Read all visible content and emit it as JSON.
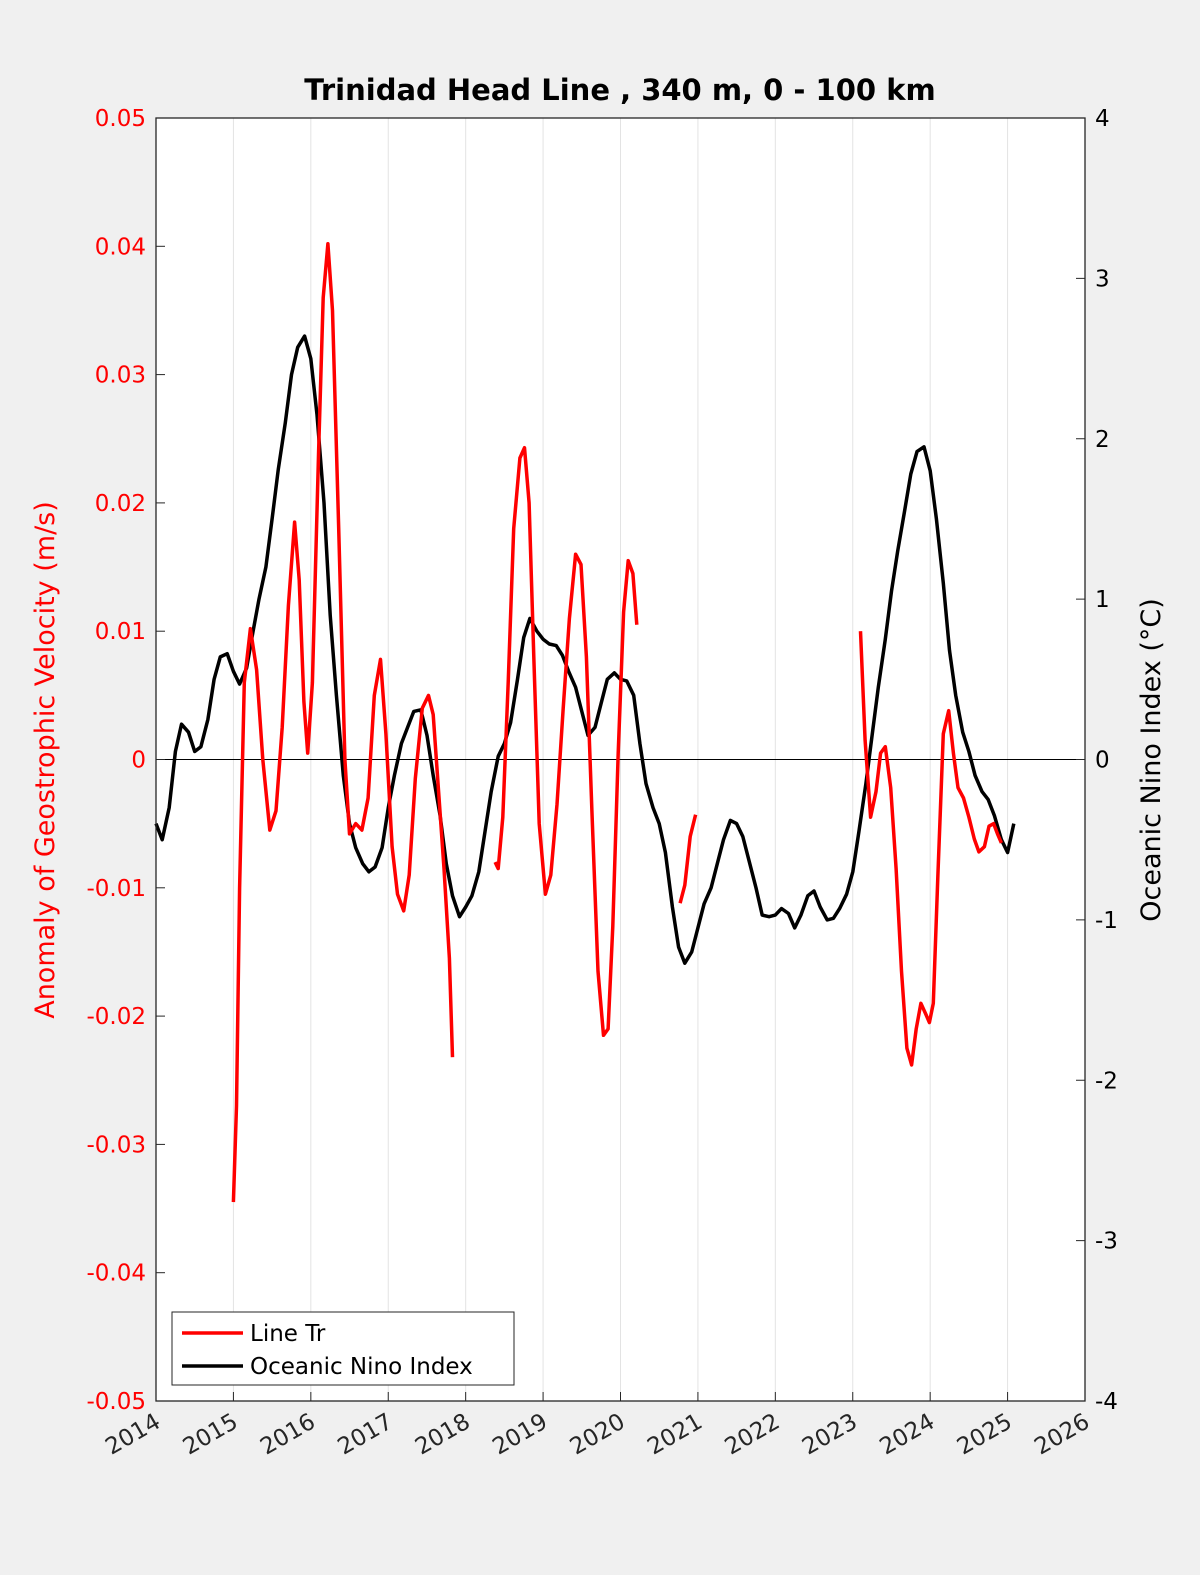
{
  "chart_data": {
    "type": "line",
    "title": "Trinidad Head Line , 340 m, 0 - 100 km",
    "xlabel": "",
    "ylabel_left": "Anomaly of Geostrophic Velocity (m/s)",
    "ylabel_right": "Oceanic Nino Index (°C)",
    "xlim": [
      2014,
      2026
    ],
    "ylim_left": [
      -0.05,
      0.05
    ],
    "ylim_right": [
      -4,
      4
    ],
    "x_ticks": [
      "2014",
      "2015",
      "2016",
      "2017",
      "2018",
      "2019",
      "2020",
      "2021",
      "2022",
      "2023",
      "2024",
      "2025",
      "2026"
    ],
    "y_left_ticks": [
      "0.05",
      "0.04",
      "0.03",
      "0.02",
      "0.01",
      "0",
      "-0.01",
      "-0.02",
      "-0.03",
      "-0.04",
      "-0.05"
    ],
    "y_right_ticks": [
      "4",
      "3",
      "2",
      "1",
      "0",
      "-1",
      "-2",
      "-3",
      "-4"
    ],
    "grid": "vertical",
    "zero_line": true,
    "legend_position": "bottom-left",
    "colors": {
      "line_tr": "#ff0000",
      "oni": "#000000",
      "left_axis": "#ff0000",
      "right_axis": "#000000"
    },
    "series": [
      {
        "name": "Line Tr",
        "axis": "left",
        "color": "#ff0000",
        "segments": [
          [
            [
              2015.0,
              -0.0345
            ],
            [
              2015.04,
              -0.027
            ],
            [
              2015.08,
              -0.01
            ],
            [
              2015.14,
              0.006
            ],
            [
              2015.22,
              0.0102
            ],
            [
              2015.3,
              0.007
            ],
            [
              2015.38,
              0.0
            ],
            [
              2015.47,
              -0.0055
            ],
            [
              2015.55,
              -0.004
            ],
            [
              2015.63,
              0.0025
            ],
            [
              2015.71,
              0.012
            ],
            [
              2015.79,
              0.0185
            ],
            [
              2015.85,
              0.014
            ],
            [
              2015.91,
              0.0045
            ],
            [
              2015.96,
              0.0005
            ],
            [
              2016.02,
              0.006
            ],
            [
              2016.1,
              0.024
            ],
            [
              2016.16,
              0.036
            ],
            [
              2016.22,
              0.0402
            ],
            [
              2016.28,
              0.035
            ],
            [
              2016.36,
              0.018
            ],
            [
              2016.44,
              0.0
            ],
            [
              2016.5,
              -0.0058
            ],
            [
              2016.58,
              -0.005
            ],
            [
              2016.66,
              -0.0055
            ],
            [
              2016.74,
              -0.003
            ],
            [
              2016.82,
              0.005
            ],
            [
              2016.9,
              0.0078
            ],
            [
              2016.97,
              0.002
            ],
            [
              2017.05,
              -0.0068
            ],
            [
              2017.12,
              -0.0105
            ],
            [
              2017.2,
              -0.0118
            ],
            [
              2017.27,
              -0.009
            ],
            [
              2017.35,
              -0.0015
            ],
            [
              2017.44,
              0.004
            ],
            [
              2017.52,
              0.005
            ],
            [
              2017.58,
              0.0035
            ],
            [
              2017.65,
              -0.0025
            ],
            [
              2017.72,
              -0.0085
            ],
            [
              2017.79,
              -0.0155
            ],
            [
              2017.83,
              -0.0232
            ]
          ],
          [
            [
              2018.38,
              -0.008
            ],
            [
              2018.42,
              -0.0085
            ],
            [
              2018.48,
              -0.0045
            ],
            [
              2018.55,
              0.006
            ],
            [
              2018.62,
              0.018
            ],
            [
              2018.7,
              0.0235
            ],
            [
              2018.76,
              0.0243
            ],
            [
              2018.82,
              0.02
            ],
            [
              2018.88,
              0.008
            ],
            [
              2018.95,
              -0.005
            ],
            [
              2019.03,
              -0.0105
            ],
            [
              2019.1,
              -0.009
            ],
            [
              2019.18,
              -0.0035
            ],
            [
              2019.26,
              0.004
            ],
            [
              2019.34,
              0.011
            ],
            [
              2019.42,
              0.016
            ],
            [
              2019.49,
              0.0152
            ],
            [
              2019.56,
              0.008
            ],
            [
              2019.63,
              -0.004
            ],
            [
              2019.71,
              -0.0165
            ],
            [
              2019.78,
              -0.0215
            ],
            [
              2019.84,
              -0.021
            ],
            [
              2019.9,
              -0.013
            ],
            [
              2019.97,
              0.0005
            ],
            [
              2020.04,
              0.0115
            ],
            [
              2020.1,
              0.0155
            ],
            [
              2020.16,
              0.0145
            ],
            [
              2020.21,
              0.0105
            ]
          ],
          [
            [
              2020.77,
              -0.0112
            ],
            [
              2020.83,
              -0.0098
            ],
            [
              2020.9,
              -0.006
            ],
            [
              2020.97,
              -0.0043
            ]
          ],
          [
            [
              2023.1,
              0.01
            ],
            [
              2023.16,
              0.0015
            ],
            [
              2023.23,
              -0.0045
            ],
            [
              2023.3,
              -0.0025
            ],
            [
              2023.36,
              0.0005
            ],
            [
              2023.42,
              0.001
            ],
            [
              2023.49,
              -0.0022
            ],
            [
              2023.56,
              -0.0085
            ],
            [
              2023.63,
              -0.0165
            ],
            [
              2023.7,
              -0.0225
            ],
            [
              2023.76,
              -0.0238
            ],
            [
              2023.82,
              -0.021
            ],
            [
              2023.88,
              -0.019
            ],
            [
              2023.94,
              -0.0198
            ],
            [
              2023.99,
              -0.0205
            ],
            [
              2024.04,
              -0.019
            ],
            [
              2024.1,
              -0.009
            ],
            [
              2024.17,
              0.002
            ],
            [
              2024.24,
              0.0038
            ],
            [
              2024.3,
              0.0005
            ],
            [
              2024.36,
              -0.0022
            ],
            [
              2024.43,
              -0.003
            ],
            [
              2024.5,
              -0.0045
            ],
            [
              2024.57,
              -0.0062
            ],
            [
              2024.63,
              -0.0072
            ],
            [
              2024.7,
              -0.0068
            ],
            [
              2024.76,
              -0.0052
            ],
            [
              2024.82,
              -0.005
            ],
            [
              2024.87,
              -0.0058
            ],
            [
              2024.92,
              -0.0065
            ]
          ]
        ]
      },
      {
        "name": "Oceanic Nino Index",
        "axis": "right",
        "color": "#000000",
        "segments": [
          [
            [
              2014.0,
              -0.4
            ],
            [
              2014.08,
              -0.5
            ],
            [
              2014.17,
              -0.3
            ],
            [
              2014.25,
              0.05
            ],
            [
              2014.33,
              0.22
            ],
            [
              2014.42,
              0.17
            ],
            [
              2014.5,
              0.05
            ],
            [
              2014.58,
              0.08
            ],
            [
              2014.67,
              0.25
            ],
            [
              2014.75,
              0.5
            ],
            [
              2014.83,
              0.64
            ],
            [
              2014.92,
              0.66
            ],
            [
              2015.0,
              0.55
            ],
            [
              2015.08,
              0.47
            ],
            [
              2015.17,
              0.57
            ],
            [
              2015.25,
              0.79
            ],
            [
              2015.33,
              1.0
            ],
            [
              2015.42,
              1.2
            ],
            [
              2015.5,
              1.5
            ],
            [
              2015.58,
              1.81
            ],
            [
              2015.67,
              2.1
            ],
            [
              2015.75,
              2.4
            ],
            [
              2015.83,
              2.57
            ],
            [
              2015.92,
              2.64
            ],
            [
              2016.0,
              2.5
            ],
            [
              2016.08,
              2.15
            ],
            [
              2016.17,
              1.6
            ],
            [
              2016.25,
              0.9
            ],
            [
              2016.33,
              0.4
            ],
            [
              2016.42,
              -0.1
            ],
            [
              2016.5,
              -0.4
            ],
            [
              2016.58,
              -0.55
            ],
            [
              2016.67,
              -0.65
            ],
            [
              2016.75,
              -0.7
            ],
            [
              2016.83,
              -0.67
            ],
            [
              2016.92,
              -0.55
            ],
            [
              2017.0,
              -0.3
            ],
            [
              2017.08,
              -0.1
            ],
            [
              2017.17,
              0.1
            ],
            [
              2017.25,
              0.2
            ],
            [
              2017.33,
              0.3
            ],
            [
              2017.42,
              0.31
            ],
            [
              2017.5,
              0.15
            ],
            [
              2017.58,
              -0.1
            ],
            [
              2017.67,
              -0.35
            ],
            [
              2017.75,
              -0.65
            ],
            [
              2017.83,
              -0.85
            ],
            [
              2017.92,
              -0.98
            ],
            [
              2018.0,
              -0.92
            ],
            [
              2018.08,
              -0.85
            ],
            [
              2018.17,
              -0.7
            ],
            [
              2018.25,
              -0.45
            ],
            [
              2018.33,
              -0.2
            ],
            [
              2018.42,
              0.02
            ],
            [
              2018.5,
              0.1
            ],
            [
              2018.58,
              0.23
            ],
            [
              2018.67,
              0.5
            ],
            [
              2018.75,
              0.76
            ],
            [
              2018.83,
              0.88
            ],
            [
              2018.92,
              0.8
            ],
            [
              2019.0,
              0.75
            ],
            [
              2019.08,
              0.72
            ],
            [
              2019.17,
              0.71
            ],
            [
              2019.25,
              0.65
            ],
            [
              2019.33,
              0.55
            ],
            [
              2019.42,
              0.45
            ],
            [
              2019.5,
              0.3
            ],
            [
              2019.58,
              0.15
            ],
            [
              2019.67,
              0.2
            ],
            [
              2019.75,
              0.35
            ],
            [
              2019.83,
              0.5
            ],
            [
              2019.92,
              0.54
            ],
            [
              2020.0,
              0.5
            ],
            [
              2020.08,
              0.49
            ],
            [
              2020.17,
              0.4
            ],
            [
              2020.25,
              0.1
            ],
            [
              2020.33,
              -0.15
            ],
            [
              2020.42,
              -0.3
            ],
            [
              2020.5,
              -0.4
            ],
            [
              2020.58,
              -0.58
            ],
            [
              2020.67,
              -0.92
            ],
            [
              2020.75,
              -1.17
            ],
            [
              2020.83,
              -1.27
            ],
            [
              2020.92,
              -1.2
            ],
            [
              2021.0,
              -1.05
            ],
            [
              2021.08,
              -0.9
            ],
            [
              2021.17,
              -0.8
            ],
            [
              2021.25,
              -0.65
            ],
            [
              2021.33,
              -0.5
            ],
            [
              2021.42,
              -0.38
            ],
            [
              2021.5,
              -0.4
            ],
            [
              2021.58,
              -0.48
            ],
            [
              2021.67,
              -0.65
            ],
            [
              2021.75,
              -0.8
            ],
            [
              2021.83,
              -0.97
            ],
            [
              2021.92,
              -0.98
            ],
            [
              2022.0,
              -0.97
            ],
            [
              2022.08,
              -0.93
            ],
            [
              2022.17,
              -0.96
            ],
            [
              2022.25,
              -1.05
            ],
            [
              2022.33,
              -0.97
            ],
            [
              2022.42,
              -0.85
            ],
            [
              2022.5,
              -0.82
            ],
            [
              2022.58,
              -0.92
            ],
            [
              2022.67,
              -1.0
            ],
            [
              2022.75,
              -0.99
            ],
            [
              2022.83,
              -0.93
            ],
            [
              2022.92,
              -0.84
            ],
            [
              2023.0,
              -0.7
            ],
            [
              2023.08,
              -0.45
            ],
            [
              2023.17,
              -0.15
            ],
            [
              2023.25,
              0.15
            ],
            [
              2023.33,
              0.45
            ],
            [
              2023.42,
              0.75
            ],
            [
              2023.5,
              1.05
            ],
            [
              2023.58,
              1.3
            ],
            [
              2023.67,
              1.55
            ],
            [
              2023.75,
              1.78
            ],
            [
              2023.83,
              1.92
            ],
            [
              2023.92,
              1.95
            ],
            [
              2024.0,
              1.8
            ],
            [
              2024.08,
              1.5
            ],
            [
              2024.17,
              1.1
            ],
            [
              2024.25,
              0.68
            ],
            [
              2024.33,
              0.4
            ],
            [
              2024.42,
              0.17
            ],
            [
              2024.5,
              0.05
            ],
            [
              2024.58,
              -0.1
            ],
            [
              2024.67,
              -0.2
            ],
            [
              2024.75,
              -0.25
            ],
            [
              2024.83,
              -0.35
            ],
            [
              2024.92,
              -0.5
            ],
            [
              2025.0,
              -0.58
            ],
            [
              2025.08,
              -0.4
            ]
          ]
        ]
      }
    ]
  }
}
